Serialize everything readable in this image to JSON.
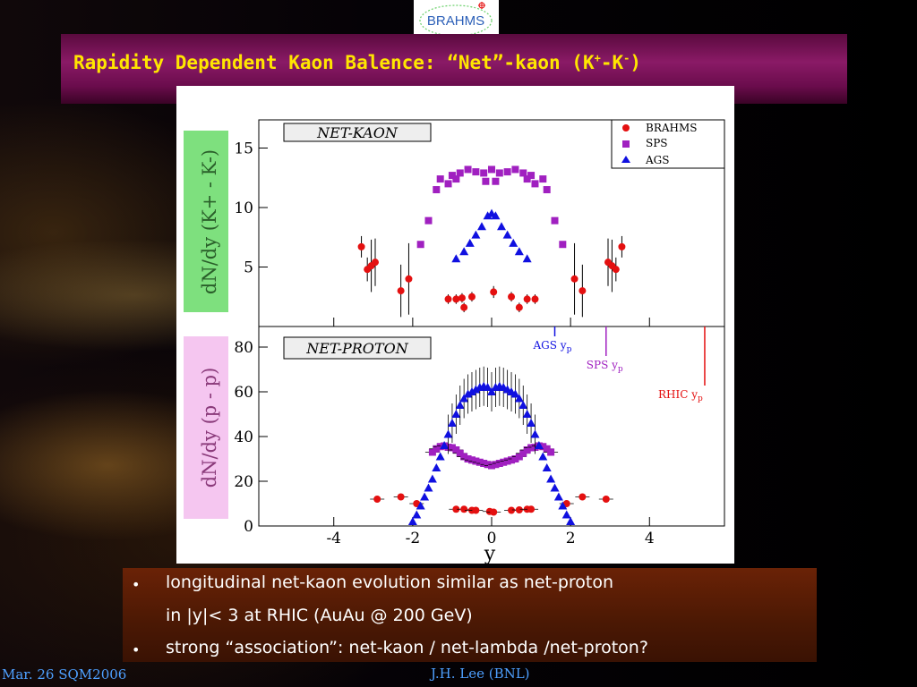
{
  "slide": {
    "logo_text": "BRAHMS",
    "title_main": "Rapidity Dependent Kaon Balence: “Net”-kaon (K",
    "title_sup1": "+",
    "title_mid": "-K",
    "title_sup2": "-",
    "title_end": ")",
    "bullets": [
      {
        "line1": "longitudinal net-kaon evolution similar as net-proton",
        "line2": "in |y|< 3 at RHIC (AuAu @ 200 GeV)"
      },
      {
        "line1": "strong “association”: net-kaon / net-lambda /net-proton?"
      }
    ],
    "footer_left": "Mar. 26 SQM2006",
    "footer_center": "J.H. Lee (BNL)"
  },
  "colors": {
    "title": "#ffe600",
    "brahms": "#e41010",
    "sps": "#a020c0",
    "ags": "#1010e0",
    "footer": "#4ea0ff",
    "ylabel_top_bg": "#7ee07e",
    "ylabel_bottom_bg": "#f5c6f0"
  },
  "chart_data": [
    {
      "type": "scatter",
      "panel_label": "NET-KAON",
      "ylabel": "dN/dy (K+ - K-)",
      "ylim": [
        0,
        17.5
      ],
      "yticks": [
        5,
        10,
        15
      ],
      "legend_position": "top-right",
      "series": [
        {
          "name": "BRAHMS",
          "marker": "circle",
          "color": "#e41010",
          "points": [
            {
              "x": -3.3,
              "y": 6.7,
              "err": 0.9
            },
            {
              "x": -3.15,
              "y": 4.8,
              "err": 1.0
            },
            {
              "x": -3.05,
              "y": 5.1,
              "err": 2.2
            },
            {
              "x": -2.95,
              "y": 5.4,
              "err": 2.0
            },
            {
              "x": -2.3,
              "y": 3.0,
              "err": 2.2
            },
            {
              "x": -2.1,
              "y": 4.0,
              "err": 3.0
            },
            {
              "x": -1.1,
              "y": 2.3,
              "err": 0.4
            },
            {
              "x": -0.9,
              "y": 2.3,
              "err": 0.4
            },
            {
              "x": -0.75,
              "y": 2.4,
              "err": 0.4
            },
            {
              "x": -0.7,
              "y": 1.6,
              "err": 0.4
            },
            {
              "x": -0.5,
              "y": 2.5,
              "err": 0.4
            },
            {
              "x": 0.05,
              "y": 2.9,
              "err": 0.5
            },
            {
              "x": 0.5,
              "y": 2.5,
              "err": 0.4
            },
            {
              "x": 0.7,
              "y": 1.6,
              "err": 0.4
            },
            {
              "x": 0.9,
              "y": 2.3,
              "err": 0.4
            },
            {
              "x": 1.1,
              "y": 2.3,
              "err": 0.4
            },
            {
              "x": 2.1,
              "y": 4.0,
              "err": 3.0
            },
            {
              "x": 2.3,
              "y": 3.0,
              "err": 2.2
            },
            {
              "x": 2.95,
              "y": 5.4,
              "err": 2.0
            },
            {
              "x": 3.05,
              "y": 5.1,
              "err": 2.2
            },
            {
              "x": 3.15,
              "y": 4.8,
              "err": 1.0
            },
            {
              "x": 3.3,
              "y": 6.7,
              "err": 0.9
            }
          ]
        },
        {
          "name": "SPS",
          "marker": "square",
          "color": "#a020c0",
          "points": [
            {
              "x": -1.8,
              "y": 6.9
            },
            {
              "x": -1.6,
              "y": 8.9
            },
            {
              "x": -1.4,
              "y": 11.5
            },
            {
              "x": -1.3,
              "y": 12.4
            },
            {
              "x": -1.1,
              "y": 12.0
            },
            {
              "x": -1.0,
              "y": 12.7
            },
            {
              "x": -0.9,
              "y": 12.4
            },
            {
              "x": -0.8,
              "y": 12.9
            },
            {
              "x": -0.6,
              "y": 13.2
            },
            {
              "x": -0.4,
              "y": 13.0
            },
            {
              "x": -0.2,
              "y": 12.9
            },
            {
              "x": -0.15,
              "y": 12.2
            },
            {
              "x": 0.0,
              "y": 13.2
            },
            {
              "x": 0.1,
              "y": 12.2
            },
            {
              "x": 0.2,
              "y": 12.9
            },
            {
              "x": 0.4,
              "y": 13.0
            },
            {
              "x": 0.6,
              "y": 13.2
            },
            {
              "x": 0.8,
              "y": 12.9
            },
            {
              "x": 0.9,
              "y": 12.4
            },
            {
              "x": 1.0,
              "y": 12.7
            },
            {
              "x": 1.1,
              "y": 12.0
            },
            {
              "x": 1.3,
              "y": 12.4
            },
            {
              "x": 1.4,
              "y": 11.5
            },
            {
              "x": 1.6,
              "y": 8.9
            },
            {
              "x": 1.8,
              "y": 6.9
            }
          ]
        },
        {
          "name": "AGS",
          "marker": "triangle",
          "color": "#1010e0",
          "points": [
            {
              "x": -0.9,
              "y": 5.7
            },
            {
              "x": -0.7,
              "y": 6.3
            },
            {
              "x": -0.55,
              "y": 7.0
            },
            {
              "x": -0.4,
              "y": 7.7
            },
            {
              "x": -0.25,
              "y": 8.4
            },
            {
              "x": -0.1,
              "y": 9.3
            },
            {
              "x": 0.0,
              "y": 9.5
            },
            {
              "x": 0.1,
              "y": 9.3
            },
            {
              "x": 0.25,
              "y": 8.4
            },
            {
              "x": 0.4,
              "y": 7.7
            },
            {
              "x": 0.55,
              "y": 7.0
            },
            {
              "x": 0.7,
              "y": 6.3
            },
            {
              "x": 0.9,
              "y": 5.7
            }
          ]
        }
      ]
    },
    {
      "type": "scatter",
      "panel_label": "NET-PROTON",
      "ylabel": "dN/dy (p - p)",
      "xlabel": "y",
      "xlim": [
        -5.9,
        5.9
      ],
      "ylim": [
        0,
        88
      ],
      "xticks": [
        -4,
        -2,
        0,
        2,
        4
      ],
      "yticks": [
        0,
        20,
        40,
        60,
        80
      ],
      "beam_rapidity_markers": [
        {
          "label": "AGS y",
          "sub": "p",
          "y_rapidity": 1.6,
          "color": "#1010e0"
        },
        {
          "label": "SPS y",
          "sub": "p",
          "y_rapidity": 2.9,
          "color": "#a020c0"
        },
        {
          "label": "RHIC y",
          "sub": "p",
          "y_rapidity": 5.4,
          "color": "#e41010"
        }
      ],
      "series": [
        {
          "name": "BRAHMS",
          "marker": "circle",
          "color": "#e41010",
          "points": [
            {
              "x": -2.9,
              "y": 12.0
            },
            {
              "x": -2.3,
              "y": 13.0
            },
            {
              "x": -1.9,
              "y": 10.0
            },
            {
              "x": -0.9,
              "y": 7.5
            },
            {
              "x": -0.7,
              "y": 7.5
            },
            {
              "x": -0.5,
              "y": 7.0
            },
            {
              "x": -0.4,
              "y": 7.0
            },
            {
              "x": -0.05,
              "y": 6.5
            },
            {
              "x": 0.05,
              "y": 6.2
            },
            {
              "x": 0.5,
              "y": 7.0
            },
            {
              "x": 0.7,
              "y": 7.2
            },
            {
              "x": 0.9,
              "y": 7.5
            },
            {
              "x": 1.0,
              "y": 7.5
            },
            {
              "x": 1.9,
              "y": 10.0
            },
            {
              "x": 2.3,
              "y": 13.0
            },
            {
              "x": 2.9,
              "y": 12.0
            }
          ]
        },
        {
          "name": "SPS",
          "marker": "square",
          "color": "#a020c0",
          "points": [
            {
              "x": -1.5,
              "y": 33.0
            },
            {
              "x": -1.4,
              "y": 34.5
            },
            {
              "x": -1.3,
              "y": 35.5
            },
            {
              "x": -1.2,
              "y": 35.8
            },
            {
              "x": -1.1,
              "y": 35.2
            },
            {
              "x": -1.0,
              "y": 35.0
            },
            {
              "x": -0.9,
              "y": 34.0
            },
            {
              "x": -0.8,
              "y": 32.5
            },
            {
              "x": -0.7,
              "y": 31.0
            },
            {
              "x": -0.6,
              "y": 30.0
            },
            {
              "x": -0.5,
              "y": 29.5
            },
            {
              "x": -0.4,
              "y": 29.0
            },
            {
              "x": -0.3,
              "y": 28.5
            },
            {
              "x": -0.2,
              "y": 28.0
            },
            {
              "x": -0.1,
              "y": 27.5
            },
            {
              "x": 0.0,
              "y": 27.0
            },
            {
              "x": 0.1,
              "y": 27.5
            },
            {
              "x": 0.2,
              "y": 28.0
            },
            {
              "x": 0.3,
              "y": 28.5
            },
            {
              "x": 0.4,
              "y": 29.0
            },
            {
              "x": 0.5,
              "y": 29.5
            },
            {
              "x": 0.6,
              "y": 30.0
            },
            {
              "x": 0.7,
              "y": 31.0
            },
            {
              "x": 0.8,
              "y": 32.5
            },
            {
              "x": 0.9,
              "y": 34.0
            },
            {
              "x": 1.0,
              "y": 35.0
            },
            {
              "x": 1.1,
              "y": 35.2
            },
            {
              "x": 1.2,
              "y": 35.8
            },
            {
              "x": 1.3,
              "y": 35.5
            },
            {
              "x": 1.4,
              "y": 34.5
            },
            {
              "x": 1.5,
              "y": 33.0
            }
          ]
        },
        {
          "name": "AGS",
          "marker": "triangle",
          "color": "#1010e0",
          "points": [
            {
              "x": -2.0,
              "y": 2.0
            },
            {
              "x": -1.9,
              "y": 5.0
            },
            {
              "x": -1.8,
              "y": 9.0
            },
            {
              "x": -1.7,
              "y": 13.0
            },
            {
              "x": -1.6,
              "y": 17.0
            },
            {
              "x": -1.5,
              "y": 21.0
            },
            {
              "x": -1.4,
              "y": 26.0
            },
            {
              "x": -1.3,
              "y": 31.0
            },
            {
              "x": -1.2,
              "y": 36.0
            },
            {
              "x": -1.1,
              "y": 41.0
            },
            {
              "x": -1.0,
              "y": 46.0
            },
            {
              "x": -0.9,
              "y": 50.0
            },
            {
              "x": -0.8,
              "y": 54.0
            },
            {
              "x": -0.7,
              "y": 57.0
            },
            {
              "x": -0.6,
              "y": 59.0
            },
            {
              "x": -0.5,
              "y": 60.0
            },
            {
              "x": -0.4,
              "y": 61.0
            },
            {
              "x": -0.3,
              "y": 62.0
            },
            {
              "x": -0.2,
              "y": 62.5
            },
            {
              "x": -0.1,
              "y": 62.0
            },
            {
              "x": 0.0,
              "y": 60.0
            },
            {
              "x": 0.1,
              "y": 62.0
            },
            {
              "x": 0.2,
              "y": 62.5
            },
            {
              "x": 0.3,
              "y": 62.0
            },
            {
              "x": 0.4,
              "y": 61.0
            },
            {
              "x": 0.5,
              "y": 60.0
            },
            {
              "x": 0.6,
              "y": 59.0
            },
            {
              "x": 0.7,
              "y": 57.0
            },
            {
              "x": 0.8,
              "y": 54.0
            },
            {
              "x": 0.9,
              "y": 50.0
            },
            {
              "x": 1.0,
              "y": 46.0
            },
            {
              "x": 1.1,
              "y": 41.0
            },
            {
              "x": 1.2,
              "y": 36.0
            },
            {
              "x": 1.3,
              "y": 31.0
            },
            {
              "x": 1.4,
              "y": 26.0
            },
            {
              "x": 1.5,
              "y": 21.0
            },
            {
              "x": 1.6,
              "y": 17.0
            },
            {
              "x": 1.7,
              "y": 13.0
            },
            {
              "x": 1.8,
              "y": 9.0
            },
            {
              "x": 1.9,
              "y": 5.0
            },
            {
              "x": 2.0,
              "y": 2.0
            }
          ]
        }
      ]
    }
  ]
}
